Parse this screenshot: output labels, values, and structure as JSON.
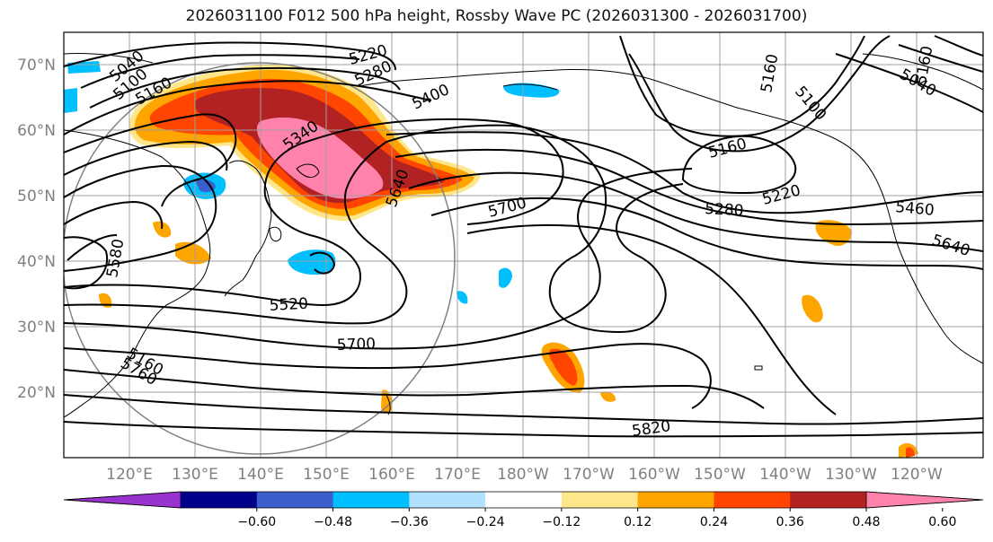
{
  "title": "2026031100 F012 500 hPa height, Rossby Wave PC (2026031300 - 2026031700)",
  "latitude_labels": [
    "70°N",
    "60°N",
    "50°N",
    "40°N",
    "30°N",
    "20°N"
  ],
  "longitude_labels": [
    "120°E",
    "130°E",
    "140°E",
    "150°E",
    "160°E",
    "170°E",
    "180°W",
    "170°W",
    "160°W",
    "150°W",
    "140°W",
    "130°W",
    "120°W"
  ],
  "contour_labels": [
    "5040",
    "5100",
    "5160",
    "5220",
    "5280",
    "5400",
    "5340",
    "5640",
    "5700",
    "5580",
    "5520",
    "5700",
    "5760",
    "5820",
    "5160",
    "5160",
    "5100",
    "5040",
    "5280",
    "5220",
    "5160",
    "5460",
    "5640",
    "5160"
  ],
  "colorbar": {
    "ticks": [
      "−0.60",
      "−0.48",
      "−0.36",
      "−0.24",
      "−0.12",
      "0.12",
      "0.24",
      "0.36",
      "0.48",
      "0.60"
    ],
    "colors": [
      "#9a32cd",
      "#00008b",
      "#3a5fcd",
      "#00bfff",
      "#b0e2ff",
      "#ffffff",
      "#ffe68a",
      "#ffa500",
      "#ff4500",
      "#b22222",
      "#ff82ab"
    ]
  },
  "colors": {
    "contour": "#000000",
    "grid": "#a0a0a0",
    "coast": "#000000"
  }
}
